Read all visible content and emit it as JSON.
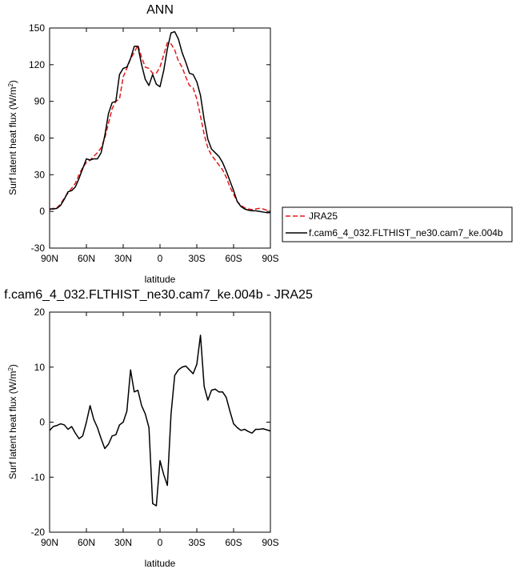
{
  "chart_data": [
    {
      "type": "line",
      "title": "ANN",
      "xlabel": "latitude",
      "ylabel": "Surf latent heat flux (W/m",
      "ylabel_sup": "2",
      "ylabel_end": ")",
      "xlim": [
        90,
        -90
      ],
      "ylim": [
        -30,
        150
      ],
      "xticks": [
        90,
        60,
        30,
        0,
        -30,
        -60,
        -90
      ],
      "xtick_labels": [
        "90N",
        "60N",
        "30N",
        "0",
        "30S",
        "60S",
        "90S"
      ],
      "yticks": [
        -30,
        0,
        30,
        60,
        90,
        120,
        150
      ],
      "ytick_labels": [
        "-30",
        "0",
        "30",
        "60",
        "90",
        "120",
        "150"
      ],
      "grid": false,
      "legend_position": "right",
      "series": [
        {
          "name": "JRA25",
          "color": "#e41a1c",
          "dash": "dashed",
          "x": [
            90,
            87,
            84,
            81,
            78,
            75,
            72,
            69,
            66,
            63,
            60,
            57,
            54,
            51,
            48,
            45,
            42,
            39,
            36,
            33,
            30,
            27,
            24,
            21,
            18,
            15,
            12,
            9,
            6,
            3,
            0,
            -3,
            -6,
            -9,
            -12,
            -15,
            -18,
            -21,
            -24,
            -27,
            -30,
            -33,
            -36,
            -39,
            -42,
            -45,
            -48,
            -51,
            -54,
            -57,
            -60,
            -63,
            -66,
            -69,
            -72,
            -75,
            -78,
            -81,
            -84,
            -87,
            -90
          ],
          "y": [
            1.5,
            2.5,
            3,
            6,
            11,
            15,
            19,
            23,
            30,
            36,
            40,
            42,
            45,
            48,
            52,
            60,
            72,
            84,
            90,
            92,
            110,
            117,
            125,
            130,
            136,
            126,
            118,
            117,
            113,
            113,
            118,
            128,
            138,
            137,
            132,
            123,
            118,
            110,
            103,
            101,
            92,
            78,
            63,
            52,
            46,
            42,
            38,
            34,
            28,
            20,
            14,
            8,
            5,
            3,
            2,
            1.5,
            2,
            2.5,
            2,
            1,
            0
          ]
        },
        {
          "name": "f.cam6_4_032.FLTHIST_ne30.cam7_ke.004b",
          "color": "#000000",
          "dash": "solid",
          "x": [
            90,
            87,
            84,
            81,
            78,
            75,
            72,
            69,
            66,
            63,
            60,
            57,
            54,
            51,
            48,
            45,
            42,
            39,
            36,
            33,
            30,
            27,
            24,
            21,
            18,
            15,
            12,
            9,
            6,
            3,
            0,
            -3,
            -6,
            -9,
            -12,
            -15,
            -18,
            -21,
            -24,
            -27,
            -30,
            -33,
            -36,
            -39,
            -42,
            -45,
            -48,
            -51,
            -54,
            -57,
            -60,
            -63,
            -66,
            -69,
            -72,
            -75,
            -78,
            -81,
            -84,
            -87,
            -90
          ],
          "y": [
            2,
            2,
            2.5,
            5,
            10,
            16,
            17,
            20,
            27,
            35,
            43,
            42,
            43,
            43,
            48,
            62,
            80,
            89,
            90,
            112,
            117,
            118,
            125,
            135,
            135,
            120,
            108,
            103,
            112,
            104,
            102,
            115,
            133,
            146,
            147,
            141,
            130,
            122,
            113,
            112,
            106,
            95,
            75,
            59,
            51,
            48,
            45,
            40,
            33,
            25,
            17,
            8,
            4,
            2,
            1,
            0.5,
            0.5,
            0,
            -0.5,
            -1,
            -1
          ]
        }
      ]
    },
    {
      "type": "line",
      "title": "f.cam6_4_032.FLTHIST_ne30.cam7_ke.004b - JRA25",
      "xlabel": "latitude",
      "ylabel": "Surf latent heat flux (W/m",
      "ylabel_sup": "2",
      "ylabel_end": ")",
      "xlim": [
        90,
        -90
      ],
      "ylim": [
        -20,
        20
      ],
      "xticks": [
        90,
        60,
        30,
        0,
        -30,
        -60,
        -90
      ],
      "xtick_labels": [
        "90N",
        "60N",
        "30N",
        "0",
        "30S",
        "60S",
        "90S"
      ],
      "yticks": [
        -20,
        -10,
        0,
        10,
        20
      ],
      "ytick_labels": [
        "-20",
        "-10",
        "0",
        "10",
        "20"
      ],
      "grid": false,
      "series": [
        {
          "color": "#000000",
          "dash": "solid",
          "x": [
            90,
            87,
            84,
            81,
            78,
            75,
            72,
            69,
            66,
            63,
            60,
            57,
            54,
            51,
            48,
            45,
            42,
            39,
            36,
            33,
            30,
            27,
            24,
            21,
            18,
            15,
            12,
            9,
            6,
            3,
            0,
            -3,
            -6,
            -9,
            -12,
            -15,
            -18,
            -21,
            -24,
            -27,
            -30,
            -33,
            -36,
            -39,
            -42,
            -45,
            -48,
            -51,
            -54,
            -57,
            -60,
            -63,
            -66,
            -69,
            -72,
            -75,
            -78,
            -81,
            -84,
            -87,
            -90
          ],
          "y": [
            -1.5,
            -0.8,
            -0.6,
            -0.3,
            -0.5,
            -1.3,
            -0.8,
            -2,
            -3,
            -2.5,
            0,
            3,
            0.5,
            -1,
            -3,
            -4.8,
            -4,
            -2.5,
            -2.3,
            -0.5,
            0,
            2,
            9.5,
            5.5,
            5.8,
            3,
            1.5,
            -1,
            -14.8,
            -15.2,
            -7,
            -9.5,
            -11.5,
            1.5,
            8.5,
            9.5,
            10,
            10.2,
            9.5,
            8.8,
            10.5,
            15.8,
            6.5,
            4,
            5.8,
            6,
            5.5,
            5.5,
            4.5,
            2,
            -0.3,
            -1,
            -1.5,
            -1.3,
            -1.7,
            -2,
            -1.3,
            -1.3,
            -1.2,
            -1.4,
            -1.6
          ]
        }
      ]
    }
  ]
}
